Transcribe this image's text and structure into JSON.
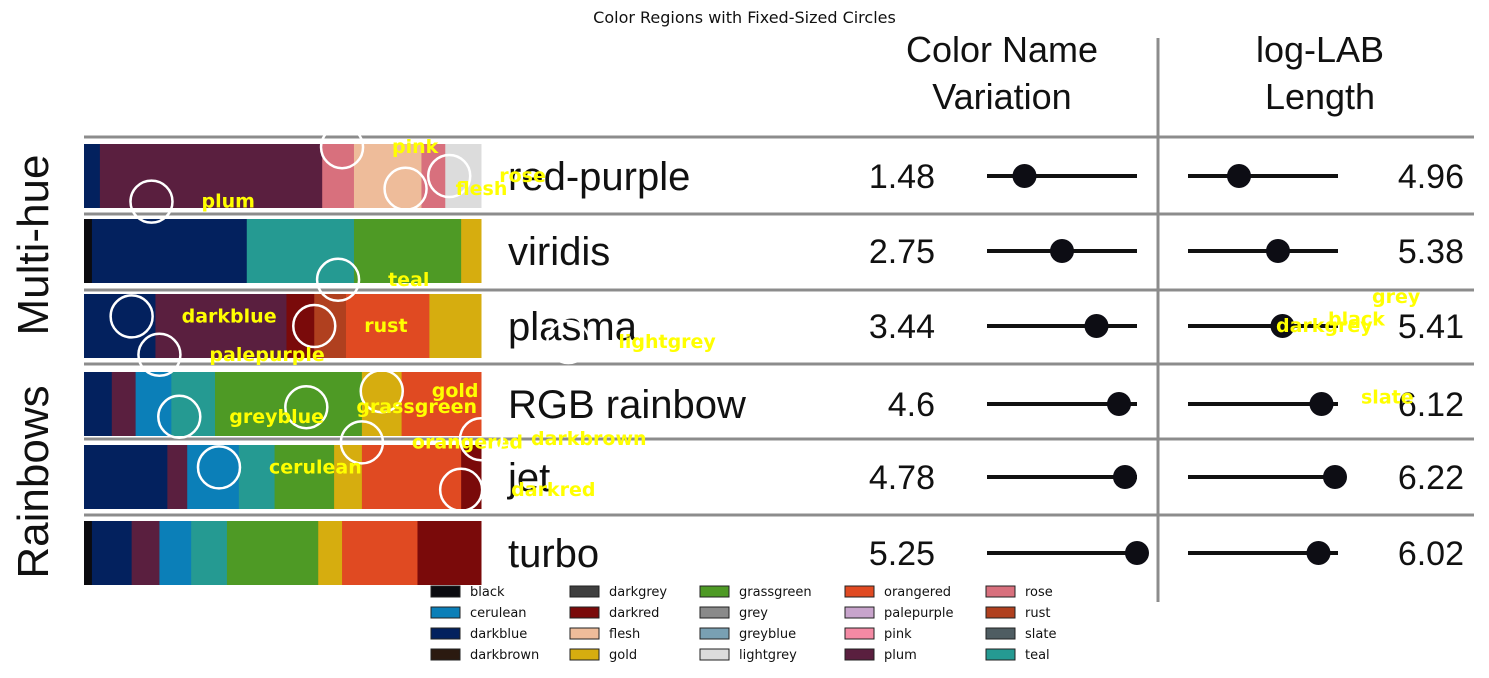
{
  "figure": {
    "title": "Color Regions with Fixed-Sized Circles"
  },
  "chart_data": {
    "type": "table",
    "title": "Color Regions with Fixed-Sized Circles",
    "column_headers": {
      "variation": [
        "Color Name",
        "Variation"
      ],
      "length": [
        "log-LAB",
        "Length"
      ]
    },
    "group_labels": [
      "Multi-hue",
      "Rainbows"
    ],
    "rows": [
      {
        "name": "red-purple",
        "group": "Multi-hue",
        "variation": "1.48",
        "length": "4.96",
        "var_dot": 0.25,
        "len_dot": 0.34,
        "bands": [
          [
            "darkblue",
            0.04
          ],
          [
            "plum",
            0.56
          ],
          [
            "rose",
            0.08
          ],
          [
            "flesh",
            0.17
          ],
          [
            "rose",
            0.06
          ],
          [
            "lightgrey",
            0.09
          ]
        ]
      },
      {
        "name": "viridis",
        "group": "Multi-hue",
        "variation": "2.75",
        "length": "5.38",
        "var_dot": 0.5,
        "len_dot": 0.6,
        "bands": [
          [
            "black",
            0.02
          ],
          [
            "darkblue",
            0.39
          ],
          [
            "teal",
            0.27
          ],
          [
            "grassgreen",
            0.27
          ],
          [
            "gold",
            0.05
          ]
        ]
      },
      {
        "name": "plasma",
        "group": "Multi-hue",
        "variation": "3.44",
        "length": "5.41",
        "var_dot": 0.73,
        "len_dot": 0.63,
        "bands": [
          [
            "darkblue",
            0.18
          ],
          [
            "plum",
            0.33
          ],
          [
            "darkred",
            0.07
          ],
          [
            "rust",
            0.08
          ],
          [
            "orangered",
            0.21
          ],
          [
            "gold",
            0.13
          ]
        ]
      },
      {
        "name": "RGB rainbow",
        "group": "Rainbows",
        "variation": "4.6",
        "length": "6.12",
        "var_dot": 0.88,
        "len_dot": 0.89,
        "bands": [
          [
            "darkblue",
            0.07
          ],
          [
            "plum",
            0.06
          ],
          [
            "cerulean",
            0.09
          ],
          [
            "teal",
            0.11
          ],
          [
            "grassgreen",
            0.37
          ],
          [
            "gold",
            0.1
          ],
          [
            "orangered",
            0.2
          ]
        ]
      },
      {
        "name": "jet",
        "group": "Rainbows",
        "variation": "4.78",
        "length": "6.22",
        "var_dot": 0.92,
        "len_dot": 0.98,
        "bands": [
          [
            "darkblue",
            0.21
          ],
          [
            "plum",
            0.05
          ],
          [
            "cerulean",
            0.13
          ],
          [
            "teal",
            0.09
          ],
          [
            "grassgreen",
            0.15
          ],
          [
            "gold",
            0.07
          ],
          [
            "orangered",
            0.25
          ],
          [
            "darkred",
            0.05
          ]
        ]
      },
      {
        "name": "turbo",
        "group": "Rainbows",
        "variation": "5.25",
        "length": "6.02",
        "var_dot": 1.0,
        "len_dot": 0.87,
        "bands": [
          [
            "black",
            0.02
          ],
          [
            "darkblue",
            0.1
          ],
          [
            "plum",
            0.07
          ],
          [
            "cerulean",
            0.08
          ],
          [
            "teal",
            0.09
          ],
          [
            "grassgreen",
            0.23
          ],
          [
            "gold",
            0.06
          ],
          [
            "orangered",
            0.19
          ],
          [
            "darkred",
            0.16
          ]
        ]
      }
    ],
    "circle_labels": [
      {
        "label": "pink",
        "row": 0,
        "x": 0.65,
        "dy": -0.45
      },
      {
        "label": "rose",
        "row": 0,
        "x": 0.92,
        "dy": 0.0
      },
      {
        "label": "flesh",
        "row": 0,
        "x": 0.81,
        "dy": 0.2
      },
      {
        "label": "plum",
        "row": 0,
        "x": 0.17,
        "dy": 0.4
      },
      {
        "label": "teal",
        "row": 1,
        "x": 0.64,
        "dy": 0.45
      },
      {
        "label": "darkblue",
        "row": 2,
        "x": 0.12,
        "dy": -0.15
      },
      {
        "label": "rust",
        "row": 2,
        "x": 0.58,
        "dy": 0.0
      },
      {
        "label": "palepurple",
        "row": 2,
        "x": 0.19,
        "dy": 0.45
      },
      {
        "label": "lightgrey",
        "row": 2,
        "x": 1.22,
        "dy": 0.25
      },
      {
        "label": "gold",
        "row": 3,
        "x": 0.75,
        "dy": -0.2
      },
      {
        "label": "grassgreen",
        "row": 3,
        "x": 0.56,
        "dy": 0.05
      },
      {
        "label": "greyblue",
        "row": 3,
        "x": 0.24,
        "dy": 0.2
      },
      {
        "label": "orangered",
        "row": 3,
        "x": 0.7,
        "dy": 0.6
      },
      {
        "label": "darkbrown",
        "row": 3,
        "x": 1.0,
        "dy": 0.55
      },
      {
        "label": "cerulean",
        "row": 4,
        "x": 0.34,
        "dy": -0.15
      },
      {
        "label": "darkred",
        "row": 4,
        "x": 0.95,
        "dy": 0.2
      }
    ],
    "right_labels": [
      {
        "label": "grey",
        "row": 2,
        "dy": -0.45
      },
      {
        "label": "black",
        "row": 2,
        "dy": -0.1
      },
      {
        "label": "darkgrey",
        "row": 2,
        "dy": 0.0
      },
      {
        "label": "slate",
        "row": 3,
        "dy": -0.1
      }
    ],
    "legend": [
      {
        "name": "black",
        "color": "#0b0b0f"
      },
      {
        "name": "cerulean",
        "color": "#0b7fb8"
      },
      {
        "name": "darkblue",
        "color": "#03215e"
      },
      {
        "name": "darkbrown",
        "color": "#2b1a10"
      },
      {
        "name": "darkgrey",
        "color": "#3f3f3f"
      },
      {
        "name": "darkred",
        "color": "#7a0a0a"
      },
      {
        "name": "flesh",
        "color": "#eebc9a"
      },
      {
        "name": "gold",
        "color": "#d6ad0f"
      },
      {
        "name": "grassgreen",
        "color": "#4e9a25"
      },
      {
        "name": "grey",
        "color": "#8a8a8a"
      },
      {
        "name": "greyblue",
        "color": "#79a0b3"
      },
      {
        "name": "lightgrey",
        "color": "#dcdcdc"
      },
      {
        "name": "orangered",
        "color": "#e04a22"
      },
      {
        "name": "palepurple",
        "color": "#c8a4cc"
      },
      {
        "name": "pink",
        "color": "#f48aa4"
      },
      {
        "name": "plum",
        "color": "#5a1f3f"
      },
      {
        "name": "rose",
        "color": "#d8707d"
      },
      {
        "name": "rust",
        "color": "#b0401f"
      },
      {
        "name": "slate",
        "color": "#4f5d62"
      },
      {
        "name": "teal",
        "color": "#259a92"
      }
    ],
    "colors": {
      "label_text": "#ffff00",
      "circle": "#ffffff",
      "rule": "#8c8c8c",
      "dot": "#0d0d14"
    }
  }
}
